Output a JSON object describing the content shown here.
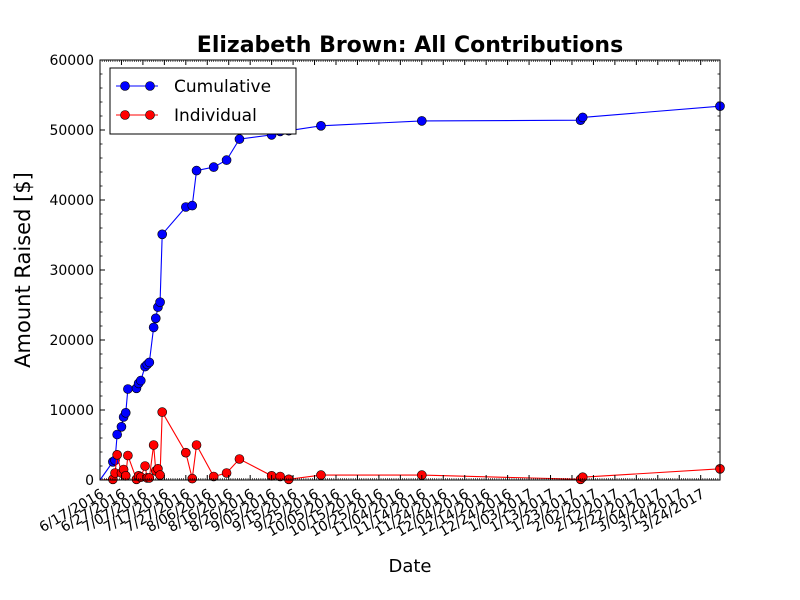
{
  "chart_data": {
    "type": "line",
    "title": "Elizabeth Brown: All Contributions",
    "xlabel": "Date",
    "ylabel": "Amount Raised [$]",
    "xlim": [
      "2016-06-17",
      "2017-04-02"
    ],
    "ylim": [
      0,
      60000
    ],
    "y_ticks": [
      0,
      10000,
      20000,
      30000,
      40000,
      50000,
      60000
    ],
    "x_ticks": [
      "2016-06-17",
      "2016-06-27",
      "2016-07-07",
      "2016-07-17",
      "2016-07-27",
      "2016-08-06",
      "2016-08-16",
      "2016-08-26",
      "2016-09-05",
      "2016-09-15",
      "2016-09-25",
      "2016-10-05",
      "2016-10-15",
      "2016-10-25",
      "2016-11-04",
      "2016-11-14",
      "2016-11-24",
      "2016-12-04",
      "2016-12-14",
      "2016-12-24",
      "2017-01-03",
      "2017-01-13",
      "2017-01-23",
      "2017-02-02",
      "2017-02-12",
      "2017-02-22",
      "2017-03-04",
      "2017-03-14",
      "2017-03-24"
    ],
    "x_tick_labels": [
      "6/17/2016",
      "6/27/2016",
      "7/07/2016",
      "7/17/2016",
      "7/27/2016",
      "8/06/2016",
      "8/16/2016",
      "8/26/2016",
      "9/05/2016",
      "9/15/2016",
      "9/25/2016",
      "10/05/2016",
      "10/15/2016",
      "10/25/2016",
      "11/04/2016",
      "11/14/2016",
      "11/24/2016",
      "12/04/2016",
      "12/14/2016",
      "12/24/2016",
      "1/03/2017",
      "1/13/2017",
      "1/23/2017",
      "2/02/2017",
      "2/12/2017",
      "2/22/2017",
      "3/04/2017",
      "3/14/2017",
      "3/24/2017"
    ],
    "grid": false,
    "legend_position": "top-left",
    "series": [
      {
        "name": "Cumulative",
        "color": "#0000ff",
        "marker": "circle",
        "points": [
          [
            "2016-06-23",
            2600
          ],
          [
            "2016-06-24",
            2800
          ],
          [
            "2016-06-25",
            6500
          ],
          [
            "2016-06-27",
            7600
          ],
          [
            "2016-06-28",
            9000
          ],
          [
            "2016-06-29",
            9600
          ],
          [
            "2016-06-30",
            13000
          ],
          [
            "2016-07-04",
            13100
          ],
          [
            "2016-07-05",
            13800
          ],
          [
            "2016-07-06",
            14200
          ],
          [
            "2016-07-08",
            16200
          ],
          [
            "2016-07-09",
            16500
          ],
          [
            "2016-07-10",
            16800
          ],
          [
            "2016-07-12",
            21800
          ],
          [
            "2016-07-13",
            23100
          ],
          [
            "2016-07-14",
            24700
          ],
          [
            "2016-07-15",
            25400
          ],
          [
            "2016-07-16",
            35100
          ],
          [
            "2016-07-27",
            39000
          ],
          [
            "2016-07-30",
            39200
          ],
          [
            "2016-08-01",
            44200
          ],
          [
            "2016-08-09",
            44700
          ],
          [
            "2016-08-15",
            45700
          ],
          [
            "2016-08-21",
            48700
          ],
          [
            "2016-09-05",
            49300
          ],
          [
            "2016-09-09",
            49800
          ],
          [
            "2016-09-13",
            49900
          ],
          [
            "2016-09-28",
            50600
          ],
          [
            "2016-11-14",
            51300
          ],
          [
            "2017-01-27",
            51400
          ],
          [
            "2017-01-28",
            51800
          ],
          [
            "2017-04-02",
            53400
          ]
        ]
      },
      {
        "name": "Individual",
        "color": "#ff0000",
        "marker": "circle",
        "points": [
          [
            "2016-06-23",
            100
          ],
          [
            "2016-06-24",
            1000
          ],
          [
            "2016-06-25",
            3600
          ],
          [
            "2016-06-27",
            1000
          ],
          [
            "2016-06-28",
            1500
          ],
          [
            "2016-06-29",
            600
          ],
          [
            "2016-06-30",
            3500
          ],
          [
            "2016-07-04",
            100
          ],
          [
            "2016-07-05",
            600
          ],
          [
            "2016-07-06",
            400
          ],
          [
            "2016-07-08",
            2000
          ],
          [
            "2016-07-09",
            300
          ],
          [
            "2016-07-10",
            300
          ],
          [
            "2016-07-12",
            5000
          ],
          [
            "2016-07-13",
            1300
          ],
          [
            "2016-07-14",
            1600
          ],
          [
            "2016-07-15",
            700
          ],
          [
            "2016-07-16",
            9700
          ],
          [
            "2016-07-27",
            3900
          ],
          [
            "2016-07-30",
            200
          ],
          [
            "2016-08-01",
            5000
          ],
          [
            "2016-08-09",
            500
          ],
          [
            "2016-08-15",
            1000
          ],
          [
            "2016-08-21",
            3000
          ],
          [
            "2016-09-05",
            600
          ],
          [
            "2016-09-09",
            500
          ],
          [
            "2016-09-13",
            100
          ],
          [
            "2016-09-28",
            700
          ],
          [
            "2016-11-14",
            700
          ],
          [
            "2017-01-27",
            100
          ],
          [
            "2017-01-28",
            400
          ],
          [
            "2017-04-02",
            1600
          ]
        ]
      }
    ]
  }
}
